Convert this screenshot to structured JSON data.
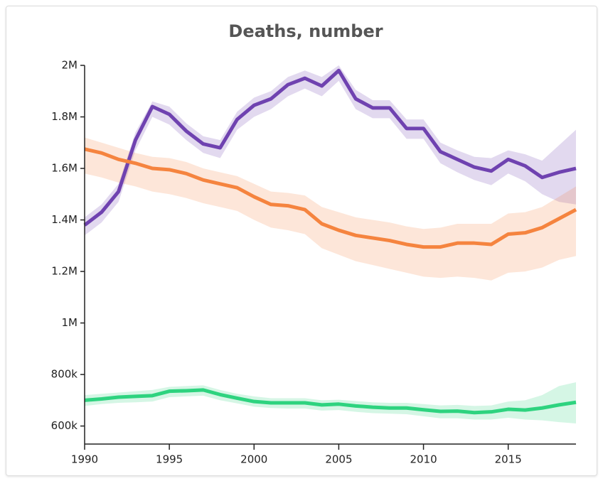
{
  "chart_data": {
    "type": "line",
    "title": "Deaths, number",
    "x": [
      1990,
      1991,
      1992,
      1993,
      1994,
      1995,
      1996,
      1997,
      1998,
      1999,
      2000,
      2001,
      2002,
      2003,
      2004,
      2005,
      2006,
      2007,
      2008,
      2009,
      2010,
      2011,
      2012,
      2013,
      2014,
      2015,
      2016,
      2017,
      2018,
      2019
    ],
    "series": [
      {
        "color": "#6f42b0",
        "values": [
          1380000,
          1430000,
          1510000,
          1710000,
          1840000,
          1810000,
          1745000,
          1695000,
          1680000,
          1790000,
          1845000,
          1870000,
          1925000,
          1950000,
          1920000,
          1980000,
          1870000,
          1835000,
          1835000,
          1755000,
          1755000,
          1665000,
          1635000,
          1605000,
          1590000,
          1635000,
          1610000,
          1565000,
          1585000,
          1600000
        ],
        "upper": [
          1410000,
          1460000,
          1540000,
          1740000,
          1860000,
          1840000,
          1775000,
          1725000,
          1710000,
          1820000,
          1875000,
          1900000,
          1955000,
          1980000,
          1955000,
          2000000,
          1905000,
          1865000,
          1865000,
          1790000,
          1790000,
          1700000,
          1670000,
          1645000,
          1640000,
          1670000,
          1655000,
          1630000,
          1690000,
          1750000
        ],
        "lower": [
          1340000,
          1390000,
          1470000,
          1670000,
          1800000,
          1770000,
          1710000,
          1660000,
          1640000,
          1750000,
          1800000,
          1830000,
          1880000,
          1910000,
          1880000,
          1940000,
          1830000,
          1795000,
          1795000,
          1715000,
          1715000,
          1620000,
          1585000,
          1555000,
          1535000,
          1580000,
          1550000,
          1500000,
          1470000,
          1460000
        ]
      },
      {
        "color": "#f5843f",
        "values": [
          1675000,
          1660000,
          1635000,
          1620000,
          1600000,
          1595000,
          1580000,
          1555000,
          1540000,
          1525000,
          1490000,
          1460000,
          1455000,
          1440000,
          1385000,
          1360000,
          1340000,
          1330000,
          1320000,
          1305000,
          1295000,
          1295000,
          1310000,
          1310000,
          1305000,
          1345000,
          1350000,
          1370000,
          1405000,
          1440000
        ],
        "upper": [
          1720000,
          1700000,
          1680000,
          1660000,
          1645000,
          1640000,
          1625000,
          1600000,
          1585000,
          1570000,
          1540000,
          1510000,
          1505000,
          1495000,
          1450000,
          1430000,
          1410000,
          1400000,
          1390000,
          1375000,
          1365000,
          1370000,
          1385000,
          1385000,
          1385000,
          1425000,
          1430000,
          1450000,
          1490000,
          1530000
        ],
        "lower": [
          1580000,
          1565000,
          1545000,
          1530000,
          1510000,
          1500000,
          1485000,
          1465000,
          1450000,
          1435000,
          1400000,
          1370000,
          1360000,
          1345000,
          1290000,
          1265000,
          1240000,
          1225000,
          1210000,
          1195000,
          1180000,
          1175000,
          1180000,
          1175000,
          1165000,
          1195000,
          1200000,
          1215000,
          1245000,
          1260000
        ]
      },
      {
        "color": "#2ed37f",
        "values": [
          700000,
          705000,
          712000,
          715000,
          718000,
          735000,
          737000,
          740000,
          722000,
          708000,
          695000,
          690000,
          690000,
          690000,
          682000,
          685000,
          678000,
          673000,
          670000,
          670000,
          663000,
          657000,
          658000,
          652000,
          655000,
          665000,
          662000,
          670000,
          682000,
          692000
        ],
        "upper": [
          720000,
          725000,
          730000,
          735000,
          740000,
          752000,
          755000,
          758000,
          740000,
          725000,
          715000,
          708000,
          708000,
          708000,
          700000,
          702000,
          697000,
          692000,
          690000,
          690000,
          685000,
          680000,
          682000,
          678000,
          680000,
          695000,
          700000,
          720000,
          755000,
          770000
        ],
        "lower": [
          678000,
          685000,
          690000,
          692000,
          695000,
          712000,
          715000,
          718000,
          700000,
          688000,
          675000,
          670000,
          668000,
          668000,
          660000,
          662000,
          655000,
          650000,
          648000,
          646000,
          638000,
          630000,
          630000,
          625000,
          625000,
          632000,
          625000,
          622000,
          615000,
          610000
        ]
      }
    ],
    "xlim": [
      1990,
      2019
    ],
    "xticks": [
      1990,
      1995,
      2000,
      2005,
      2010,
      2015
    ],
    "ylim": [
      530000,
      2000000
    ],
    "yticks": [
      {
        "value": 600000,
        "label": "600k"
      },
      {
        "value": 800000,
        "label": "800k"
      },
      {
        "value": 1000000,
        "label": "1M"
      },
      {
        "value": 1200000,
        "label": "1.2M"
      },
      {
        "value": 1400000,
        "label": "1.4M"
      },
      {
        "value": 1600000,
        "label": "1.6M"
      },
      {
        "value": 1800000,
        "label": "1.8M"
      },
      {
        "value": 2000000,
        "label": "2M"
      }
    ]
  }
}
